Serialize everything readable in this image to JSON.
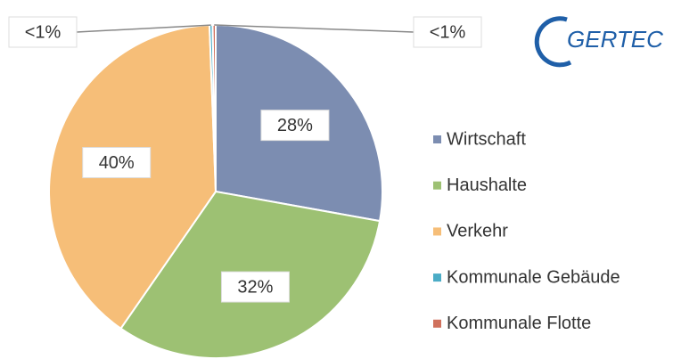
{
  "chart_data": {
    "type": "pie",
    "logo": "GERTEC",
    "categories": [
      "Wirtschaft",
      "Haushalte",
      "Verkehr",
      "Kommunale Gebäude",
      "Kommunale Flotte"
    ],
    "values": [
      28,
      32,
      40,
      0.3,
      0.3
    ],
    "value_labels": [
      "28%",
      "32%",
      "40%",
      "<1%",
      "<1%"
    ],
    "colors": [
      "#7c8db1",
      "#9dc173",
      "#f6be78",
      "#4bacc6",
      "#d0715d"
    ],
    "legend": "right"
  }
}
